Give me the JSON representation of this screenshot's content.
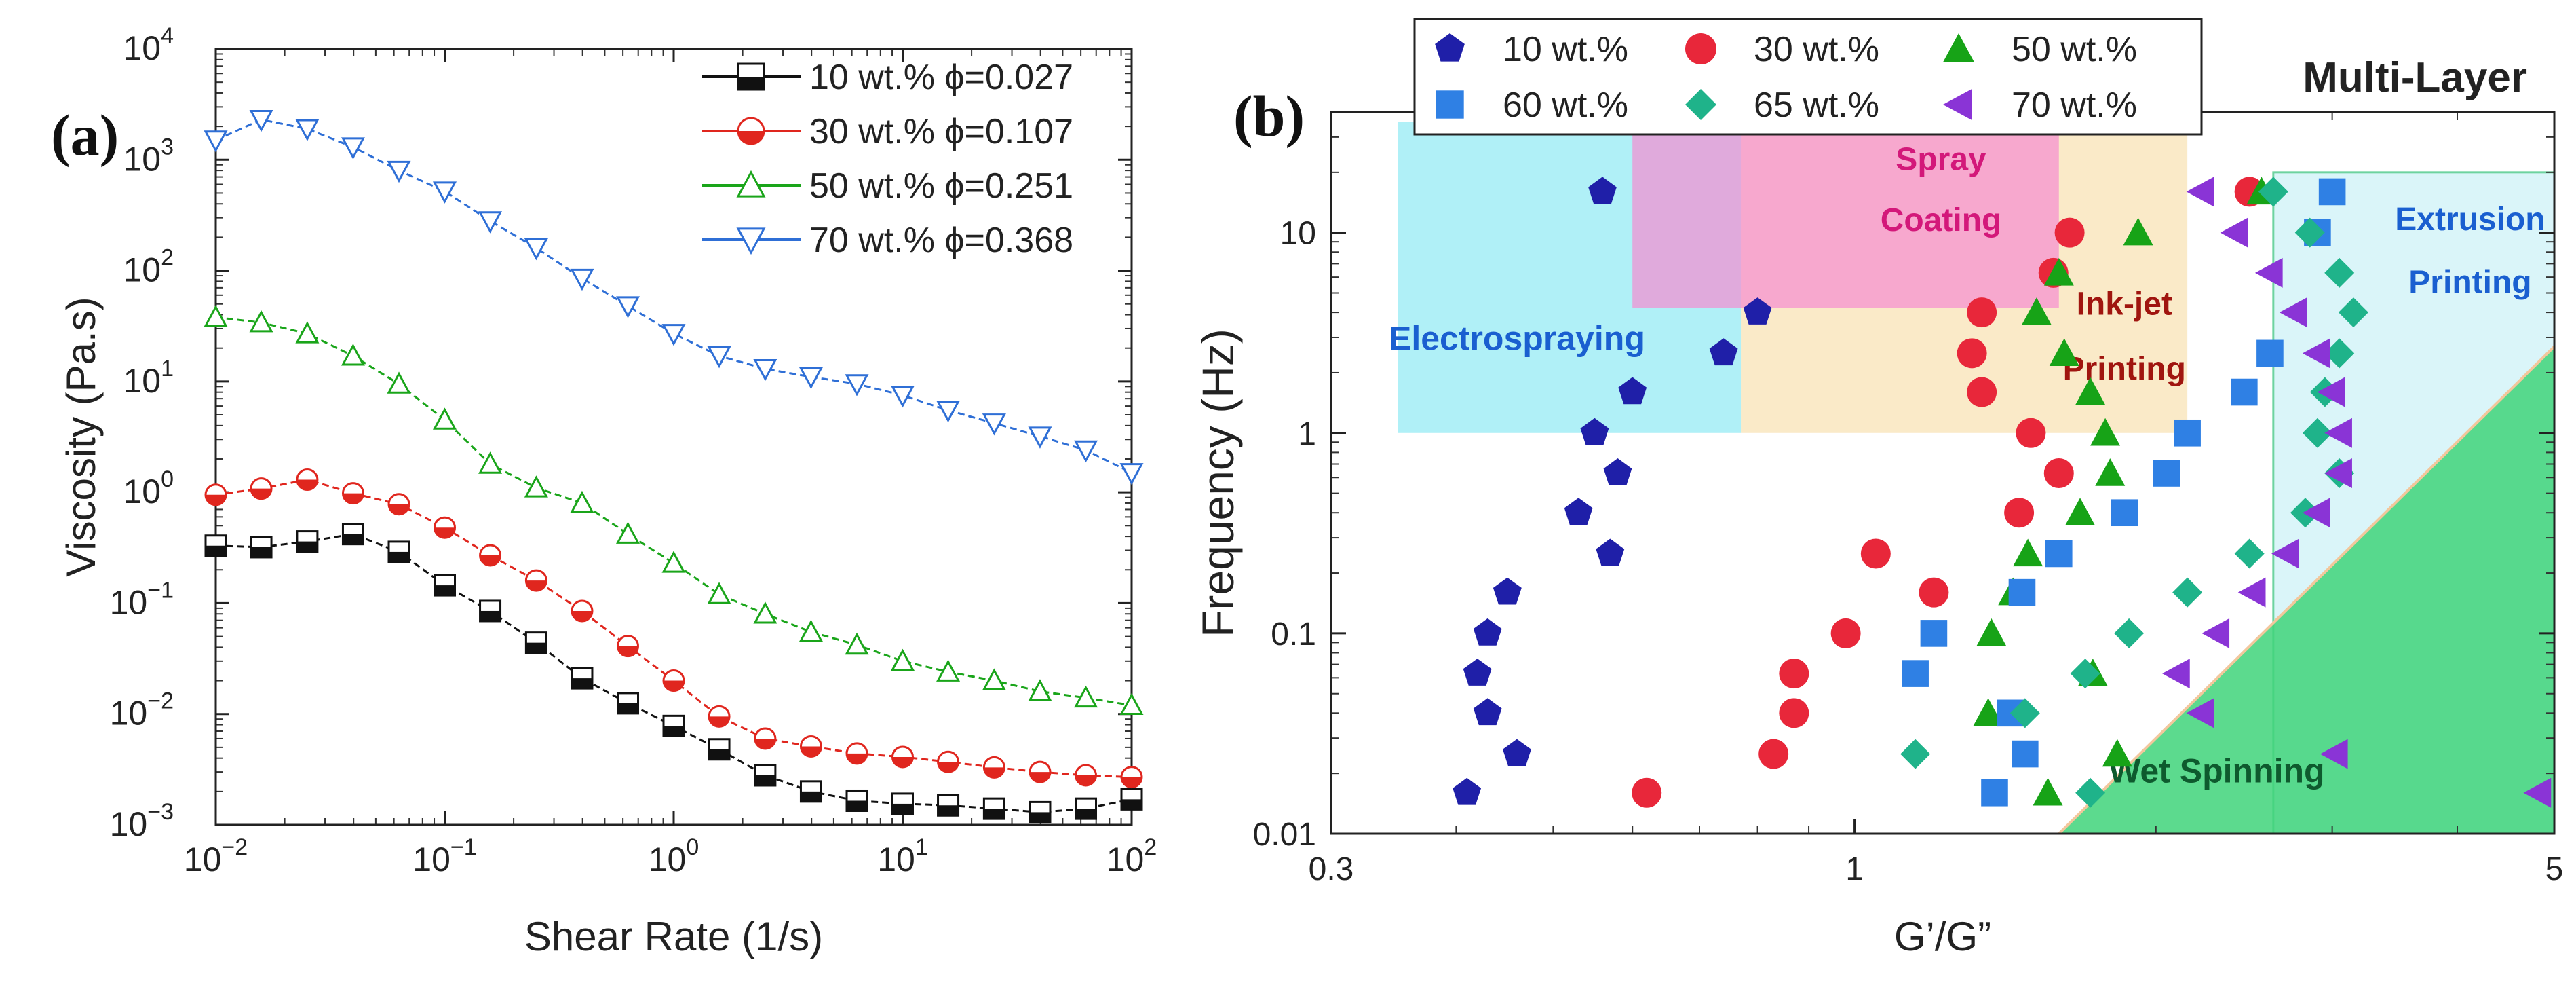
{
  "chart_data": [
    {
      "panel": "(a)",
      "type": "line",
      "xlabel": "Shear Rate (1/s)",
      "ylabel": "Viscosity (Pa.s)",
      "xscale": "log",
      "yscale": "log",
      "xlim": [
        0.01,
        100
      ],
      "ylim": [
        0.001,
        10000
      ],
      "xticks": [
        0.01,
        0.1,
        1,
        10,
        100
      ],
      "yticks": [
        0.001,
        0.01,
        0.1,
        1,
        10,
        100,
        1000,
        10000
      ],
      "legend_position": "top-right",
      "x": [
        0.01,
        0.0158,
        0.0251,
        0.0398,
        0.0631,
        0.1,
        0.158,
        0.251,
        0.398,
        0.631,
        1,
        1.58,
        2.51,
        3.98,
        6.31,
        10,
        15.8,
        25.1,
        39.8,
        63.1,
        100
      ],
      "series": [
        {
          "name": "10 wt.% ϕ=0.027",
          "color": "#111111",
          "marker": "half-square",
          "values": [
            0.33,
            0.32,
            0.36,
            0.42,
            0.29,
            0.145,
            0.085,
            0.044,
            0.021,
            0.0125,
            0.0078,
            0.0048,
            0.0028,
            0.002,
            0.00165,
            0.00155,
            0.0015,
            0.0014,
            0.0013,
            0.0014,
            0.0017
          ]
        },
        {
          "name": "30 wt.% ϕ=0.107",
          "color": "#e0261e",
          "marker": "half-circle",
          "values": [
            0.95,
            1.08,
            1.3,
            0.98,
            0.78,
            0.48,
            0.27,
            0.16,
            0.085,
            0.041,
            0.02,
            0.0095,
            0.006,
            0.0051,
            0.0044,
            0.0041,
            0.0037,
            0.0033,
            0.003,
            0.0028,
            0.0027
          ]
        },
        {
          "name": "50 wt.% ϕ=0.251",
          "color": "#1aa51a",
          "marker": "triangle-up",
          "values": [
            38,
            34,
            27,
            17,
            9.5,
            4.5,
            1.8,
            1.1,
            0.8,
            0.42,
            0.23,
            0.12,
            0.08,
            0.055,
            0.042,
            0.03,
            0.024,
            0.02,
            0.016,
            0.014,
            0.012
          ]
        },
        {
          "name": "70 wt.% ϕ=0.368",
          "color": "#2f6fd6",
          "marker": "triangle-down",
          "values": [
            1500,
            2300,
            1900,
            1300,
            800,
            520,
            280,
            160,
            85,
            48,
            27,
            17,
            13,
            11,
            9.5,
            7.5,
            5.5,
            4.2,
            3.2,
            2.4,
            1.5
          ]
        }
      ]
    },
    {
      "panel": "(b)",
      "type": "scatter",
      "xlabel": "G’/G”",
      "ylabel": "Frequency (Hz)",
      "xscale": "log",
      "yscale": "log",
      "xlim": [
        0.3,
        5
      ],
      "ylim": [
        0.01,
        40
      ],
      "xtick_labels": [
        "0.3",
        "1",
        "5"
      ],
      "xticks": [
        0.3,
        1,
        5
      ],
      "yticks": [
        0.01,
        0.1,
        1,
        10
      ],
      "ytick_labels": [
        "0.01",
        "0.1",
        "1",
        "10"
      ],
      "legend_position": "top",
      "corner_label": "Multi-Layer",
      "regions": [
        {
          "name": "Electrospraying",
          "x": [
            0.35,
            0.77
          ],
          "y": [
            1,
            40
          ],
          "fill": "#6fe3f0",
          "text_color": "#1a5fd0"
        },
        {
          "name": "Spray Coating",
          "x": [
            0.6,
            1.6
          ],
          "y": [
            4.2,
            40
          ],
          "fill": "#f58cd0",
          "text_color": "#d3187a"
        },
        {
          "name": "Ink-jet Printing",
          "x": [
            0.77,
            2.15
          ],
          "y": [
            1,
            40
          ],
          "fill": "#f6dca4",
          "text_color": "#a0150f"
        },
        {
          "name": "Extrusion Printing",
          "x": [
            2.62,
            5
          ],
          "y": [
            0.01,
            20
          ],
          "fill": "#cdf2f7",
          "text_color": "#1a5fd0"
        },
        {
          "name": "Wet Spinning",
          "fill": "#3fd47a",
          "text_color": "#0e5a2e"
        }
      ],
      "series": [
        {
          "name": "10 wt.%",
          "color": "#1f1fa8",
          "marker": "pentagon",
          "points": [
            [
              0.56,
              16
            ],
            [
              0.55,
              1.0
            ],
            [
              0.58,
              0.63
            ],
            [
              0.57,
              0.25
            ],
            [
              0.6,
              1.6
            ],
            [
              0.74,
              2.5
            ],
            [
              0.8,
              4.0
            ],
            [
              0.53,
              0.4
            ],
            [
              0.45,
              0.16
            ],
            [
              0.43,
              0.1
            ],
            [
              0.42,
              0.063
            ],
            [
              0.43,
              0.04
            ],
            [
              0.46,
              0.025
            ],
            [
              0.41,
              0.016
            ]
          ]
        },
        {
          "name": "30 wt.%",
          "color": "#e8273a",
          "marker": "circle",
          "points": [
            [
              2.48,
              16
            ],
            [
              1.64,
              10
            ],
            [
              1.58,
              6.3
            ],
            [
              1.34,
              4.0
            ],
            [
              1.31,
              2.5
            ],
            [
              1.34,
              1.6
            ],
            [
              1.5,
              1.0
            ],
            [
              1.6,
              0.63
            ],
            [
              1.46,
              0.4
            ],
            [
              1.05,
              0.25
            ],
            [
              1.2,
              0.16
            ],
            [
              0.98,
              0.1
            ],
            [
              0.87,
              0.063
            ],
            [
              0.87,
              0.04
            ],
            [
              0.83,
              0.025
            ],
            [
              0.62,
              0.016
            ]
          ]
        },
        {
          "name": "50 wt.%",
          "color": "#17a317",
          "marker": "triangle-up",
          "points": [
            [
              2.55,
              16
            ],
            [
              1.92,
              10
            ],
            [
              1.6,
              6.3
            ],
            [
              1.52,
              4.0
            ],
            [
              1.62,
              2.5
            ],
            [
              1.72,
              1.6
            ],
            [
              1.78,
              1.0
            ],
            [
              1.8,
              0.63
            ],
            [
              1.68,
              0.4
            ],
            [
              1.49,
              0.25
            ],
            [
              1.44,
              0.16
            ],
            [
              1.37,
              0.1
            ],
            [
              1.36,
              0.04
            ],
            [
              1.73,
              0.063
            ],
            [
              1.83,
              0.025
            ],
            [
              1.56,
              0.016
            ]
          ]
        },
        {
          "name": "60 wt.%",
          "color": "#2f80e4",
          "marker": "square",
          "points": [
            [
              3.0,
              16
            ],
            [
              2.9,
              10
            ],
            [
              2.6,
              2.5
            ],
            [
              2.45,
              1.6
            ],
            [
              2.15,
              1.0
            ],
            [
              2.05,
              0.63
            ],
            [
              1.86,
              0.4
            ],
            [
              1.6,
              0.25
            ],
            [
              1.47,
              0.16
            ],
            [
              1.2,
              0.1
            ],
            [
              1.15,
              0.063
            ],
            [
              1.43,
              0.04
            ],
            [
              1.48,
              0.025
            ],
            [
              1.38,
              0.016
            ]
          ]
        },
        {
          "name": "65 wt.%",
          "color": "#1fb38a",
          "marker": "diamond",
          "points": [
            [
              2.62,
              16
            ],
            [
              2.85,
              10
            ],
            [
              3.05,
              6.3
            ],
            [
              3.15,
              4.0
            ],
            [
              3.05,
              2.5
            ],
            [
              2.95,
              1.6
            ],
            [
              2.9,
              1.0
            ],
            [
              3.05,
              0.63
            ],
            [
              2.82,
              0.4
            ],
            [
              2.48,
              0.25
            ],
            [
              2.15,
              0.16
            ],
            [
              1.88,
              0.1
            ],
            [
              1.7,
              0.063
            ],
            [
              1.48,
              0.04
            ],
            [
              1.15,
              0.025
            ],
            [
              1.72,
              0.016
            ]
          ]
        },
        {
          "name": "70 wt.%",
          "color": "#8a34d6",
          "marker": "triangle-left",
          "points": [
            [
              2.22,
              16
            ],
            [
              2.4,
              10
            ],
            [
              2.6,
              6.3
            ],
            [
              2.75,
              4.0
            ],
            [
              2.9,
              2.5
            ],
            [
              3.0,
              1.6
            ],
            [
              3.05,
              1.0
            ],
            [
              3.05,
              0.63
            ],
            [
              2.9,
              0.4
            ],
            [
              2.7,
              0.25
            ],
            [
              2.5,
              0.16
            ],
            [
              2.3,
              0.1
            ],
            [
              2.1,
              0.063
            ],
            [
              2.22,
              0.04
            ],
            [
              3.02,
              0.025
            ],
            [
              4.82,
              0.016
            ]
          ]
        }
      ]
    }
  ]
}
